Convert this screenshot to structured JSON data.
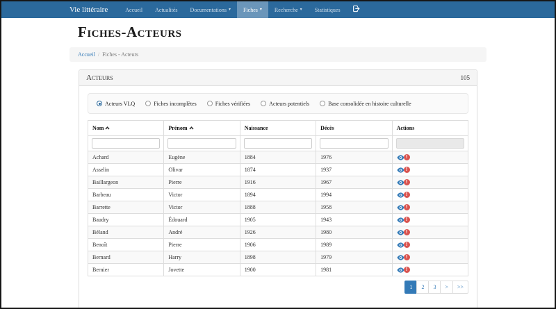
{
  "colors": {
    "navbar_bg": "#2b699c",
    "accent": "#337ab7",
    "danger": "#d9534f",
    "panel_header_bg": "#f5f5f5"
  },
  "navbar": {
    "brand": "Vie littéraire",
    "items": [
      {
        "label": "Accueil",
        "caret": false,
        "active": false
      },
      {
        "label": "Actualités",
        "caret": false,
        "active": false
      },
      {
        "label": "Documentations",
        "caret": true,
        "active": false
      },
      {
        "label": "Fiches",
        "caret": true,
        "active": true
      },
      {
        "label": "Recherche",
        "caret": true,
        "active": false
      },
      {
        "label": "Statistiques",
        "caret": false,
        "active": false
      }
    ],
    "logout_icon": "log-out-icon"
  },
  "page": {
    "title": "Fiches-Acteurs"
  },
  "breadcrumb": {
    "home": "Accueil",
    "separator": "/",
    "current": "Fiches - Acteurs"
  },
  "panel": {
    "title": "Acteurs",
    "count": "105"
  },
  "filters": {
    "options": [
      {
        "label": "Acteurs VLQ",
        "selected": true
      },
      {
        "label": "Fiches incomplètes",
        "selected": false
      },
      {
        "label": "Fiches vérifiées",
        "selected": false
      },
      {
        "label": "Acteurs potentiels",
        "selected": false
      },
      {
        "label": "Base consolidée en histoire culturelle",
        "selected": false
      }
    ]
  },
  "table": {
    "columns": [
      {
        "label": "Nom",
        "sortable": true,
        "filter_disabled": false
      },
      {
        "label": "Prénom",
        "sortable": true,
        "filter_disabled": false
      },
      {
        "label": "Naissance",
        "sortable": false,
        "filter_disabled": false
      },
      {
        "label": "Décès",
        "sortable": false,
        "filter_disabled": false
      },
      {
        "label": "Actions",
        "sortable": false,
        "filter_disabled": true
      }
    ],
    "filter_values": [
      "",
      "",
      "",
      ""
    ],
    "rows": [
      [
        "Achard",
        "Eugène",
        "1884",
        "1976"
      ],
      [
        "Asselin",
        "Olivar",
        "1874",
        "1937"
      ],
      [
        "Baillargeon",
        "Pierre",
        "1916",
        "1967"
      ],
      [
        "Barbeau",
        "Victor",
        "1894",
        "1994"
      ],
      [
        "Barrette",
        "Victor",
        "1888",
        "1958"
      ],
      [
        "Baudry",
        "Édouard",
        "1905",
        "1943"
      ],
      [
        "Béland",
        "André",
        "1926",
        "1980"
      ],
      [
        "Benoît",
        "Pierre",
        "1906",
        "1989"
      ],
      [
        "Bernard",
        "Harry",
        "1898",
        "1979"
      ],
      [
        "Bernier",
        "Jovette",
        "1900",
        "1981"
      ]
    ],
    "row_action_icons": [
      "eye-icon",
      "exclamation-circle-icon"
    ],
    "sort_icon": "chevron-up-icon"
  },
  "pagination": {
    "items": [
      "1",
      "2",
      "3",
      ">",
      ">>"
    ],
    "active": "1"
  }
}
